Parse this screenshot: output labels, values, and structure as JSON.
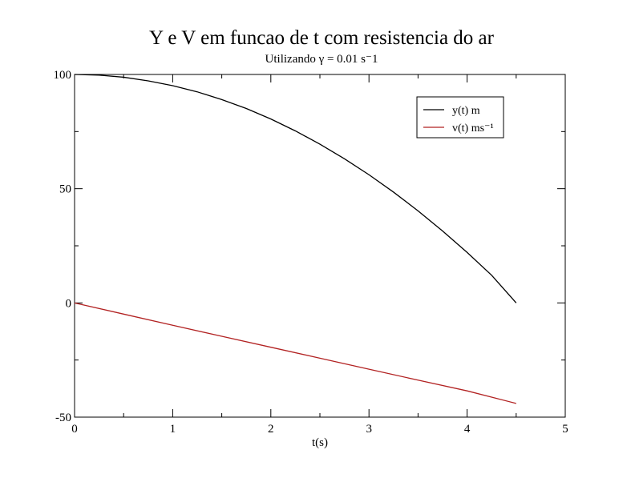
{
  "chart_data": {
    "type": "line",
    "title": "Y e V em funcao de t com resistencia do ar",
    "subtitle": "Utilizando γ = 0.01 s⁻1",
    "xlabel": "t(s)",
    "ylabel": "",
    "xlim": [
      0,
      5
    ],
    "ylim": [
      -50,
      100
    ],
    "xticks": [
      0,
      1,
      2,
      3,
      4,
      5
    ],
    "yticks": [
      -50,
      0,
      50,
      100
    ],
    "xtick_labels": [
      "0",
      "1",
      "2",
      "3",
      "4",
      "5"
    ],
    "ytick_labels": [
      "-50",
      "0",
      "50",
      "100"
    ],
    "grid": false,
    "legend_position": "top-right",
    "series": [
      {
        "name": "y(t) m",
        "color": "#000000",
        "x": [
          0,
          0.25,
          0.5,
          0.75,
          1,
          1.25,
          1.5,
          1.75,
          2,
          2.25,
          2.5,
          2.75,
          3,
          3.25,
          3.5,
          3.75,
          4,
          4.25,
          4.5
        ],
        "y": [
          100,
          99.7,
          98.8,
          97.2,
          95.1,
          92.4,
          89.0,
          85.1,
          80.5,
          75.3,
          69.5,
          63.1,
          56.1,
          48.5,
          40.3,
          31.5,
          22.1,
          12.1,
          0.0
        ]
      },
      {
        "name": "v(t) ms⁻¹",
        "color": "#b22222",
        "x": [
          0,
          0.5,
          1,
          1.5,
          2,
          2.5,
          3,
          3.5,
          4,
          4.5
        ],
        "y": [
          0,
          -4.9,
          -9.8,
          -14.6,
          -19.4,
          -24.2,
          -29.0,
          -33.8,
          -38.5,
          -44.0
        ]
      }
    ]
  }
}
